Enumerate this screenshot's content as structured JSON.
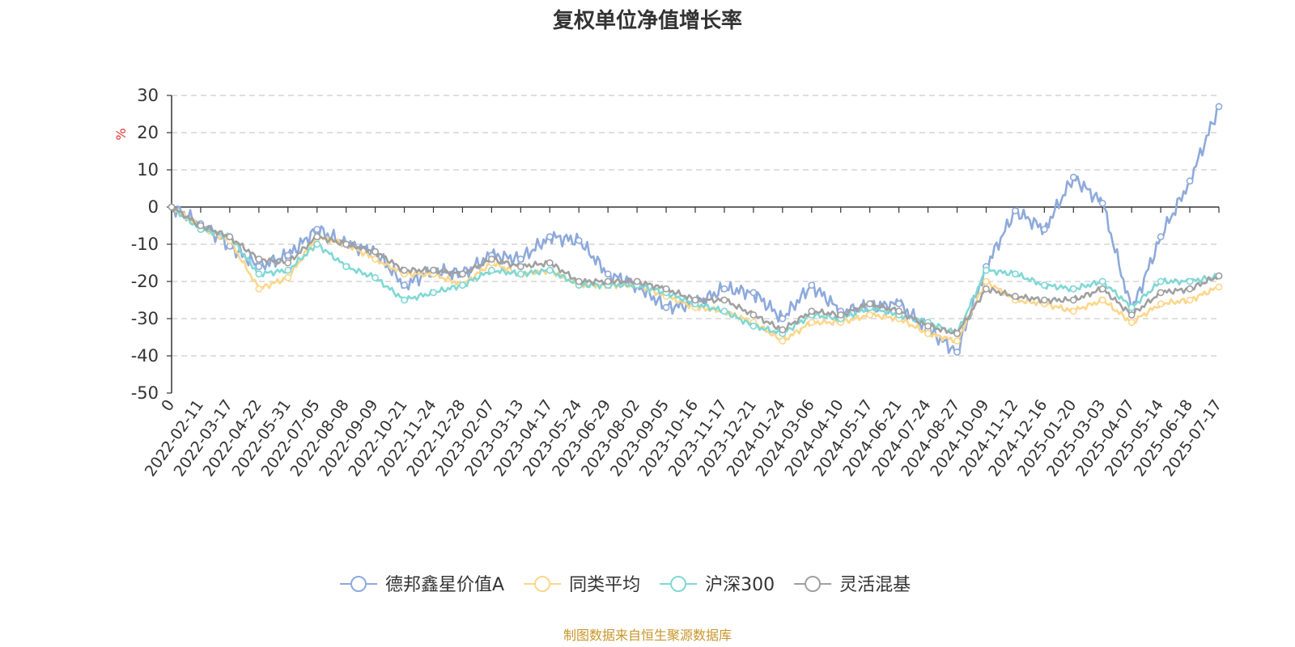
{
  "chart_data": {
    "type": "line",
    "title": "复权单位净值增长率",
    "ylabel": "%",
    "ylim": [
      -50,
      30
    ],
    "yticks": [
      30,
      20,
      10,
      0,
      -10,
      -20,
      -30,
      -40,
      -50
    ],
    "grid": true,
    "legend_position": "bottom",
    "categories": [
      "0",
      "2022-02-11",
      "2022-03-17",
      "2022-04-22",
      "2022-05-31",
      "2022-07-05",
      "2022-08-08",
      "2022-09-09",
      "2022-10-21",
      "2022-11-24",
      "2022-12-28",
      "2023-02-07",
      "2023-03-13",
      "2023-04-17",
      "2023-05-24",
      "2023-06-29",
      "2023-08-02",
      "2023-09-05",
      "2023-10-16",
      "2023-11-17",
      "2023-12-21",
      "2024-01-24",
      "2024-03-06",
      "2024-04-10",
      "2024-05-17",
      "2024-06-21",
      "2024-07-24",
      "2024-08-27",
      "2024-10-09",
      "2024-11-12",
      "2024-12-16",
      "2025-01-20",
      "2025-03-03",
      "2025-04-07",
      "2025-05-14",
      "2025-06-18",
      "2025-07-17"
    ],
    "series": [
      {
        "name": "德邦鑫星价值A",
        "color": "#8eaadb",
        "values": [
          0,
          -4.5,
          -10.5,
          -16,
          -13,
          -6,
          -10,
          -12,
          -21,
          -17,
          -18,
          -13,
          -14,
          -8,
          -9,
          -18,
          -21,
          -27,
          -26,
          -22,
          -23,
          -30,
          -21,
          -28,
          -27,
          -26,
          -33,
          -39,
          -16,
          -1,
          -6,
          8,
          1,
          -28,
          -8,
          7,
          27
        ]
      },
      {
        "name": "同类平均",
        "color": "#fcd68a",
        "values": [
          0,
          -5.5,
          -9,
          -22,
          -19,
          -8,
          -10,
          -14,
          -18,
          -18,
          -21,
          -15,
          -18,
          -17,
          -21,
          -21,
          -21,
          -24,
          -27,
          -28,
          -31,
          -36,
          -31,
          -31,
          -29,
          -30,
          -34,
          -36,
          -20,
          -25,
          -26,
          -28,
          -25,
          -31,
          -26,
          -25,
          -21.5
        ]
      },
      {
        "name": "沪深300",
        "color": "#80d8d4",
        "values": [
          0,
          -6,
          -8,
          -18,
          -17,
          -10,
          -16,
          -19,
          -25,
          -23,
          -21,
          -17,
          -18,
          -17,
          -21,
          -21,
          -21,
          -23,
          -26,
          -28,
          -32,
          -34,
          -29,
          -30,
          -27,
          -29,
          -31,
          -34,
          -17,
          -18,
          -21,
          -22,
          -20,
          -27,
          -20,
          -20,
          -18.5
        ]
      },
      {
        "name": "灵活混基",
        "color": "#a0a0a0",
        "values": [
          0,
          -5,
          -8,
          -14,
          -15,
          -8,
          -10,
          -12,
          -17,
          -17,
          -18,
          -14,
          -16,
          -15,
          -20,
          -20,
          -20,
          -22,
          -25,
          -25,
          -29,
          -33,
          -28,
          -29,
          -26,
          -28,
          -32,
          -34,
          -22,
          -24,
          -25,
          -25,
          -22,
          -29,
          -23,
          -22,
          -18.5
        ]
      }
    ]
  },
  "source_note": "制图数据来自恒生聚源数据库"
}
